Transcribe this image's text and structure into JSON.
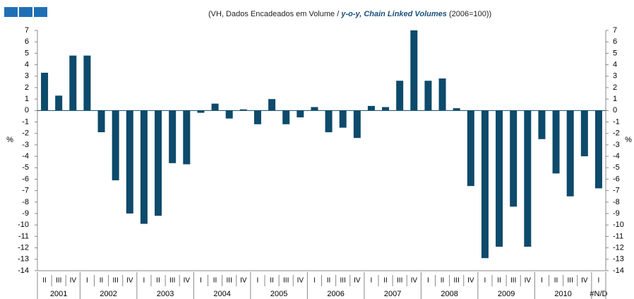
{
  "chart_data": {
    "type": "bar",
    "title_parts": [
      "(VH, Dados Encadeados em Volume /",
      "y-o-y, Chain Linked Volumes",
      "(2006=100))"
    ],
    "y_label": "%",
    "y2_label": "%",
    "groups": [
      {
        "name": "2001",
        "categories": [
          "II",
          "III",
          "IV"
        ]
      },
      {
        "name": "2002",
        "categories": [
          "I",
          "II",
          "III",
          "IV"
        ]
      },
      {
        "name": "2003",
        "categories": [
          "I",
          "II",
          "III",
          "IV"
        ]
      },
      {
        "name": "2004",
        "categories": [
          "I",
          "II",
          "III",
          "IV"
        ]
      },
      {
        "name": "2005",
        "categories": [
          "I",
          "II",
          "III",
          "IV"
        ]
      },
      {
        "name": "2006",
        "categories": [
          "I",
          "II",
          "III",
          "IV"
        ]
      },
      {
        "name": "2007",
        "categories": [
          "I",
          "II",
          "III",
          "IV"
        ]
      },
      {
        "name": "2008",
        "categories": [
          "I",
          "II",
          "III",
          "IV"
        ]
      },
      {
        "name": "2009",
        "categories": [
          "I",
          "II",
          "III",
          "IV"
        ]
      },
      {
        "name": "2010",
        "categories": [
          "I",
          "II",
          "III",
          "IV"
        ]
      },
      {
        "name": "#N/D",
        "categories": [
          "I"
        ]
      }
    ],
    "values": [
      3.3,
      1.3,
      4.8,
      4.8,
      -1.9,
      -6.1,
      -9.0,
      -9.9,
      -9.2,
      -4.6,
      -4.7,
      -0.2,
      0.6,
      -0.7,
      0.1,
      -1.2,
      1.0,
      -1.2,
      -0.6,
      0.3,
      -1.9,
      -1.5,
      -2.4,
      0.4,
      0.3,
      2.6,
      7.0,
      2.6,
      2.8,
      0.2,
      -6.6,
      -12.9,
      -11.9,
      -8.4,
      -11.9,
      -2.5,
      -5.5,
      -7.5,
      -4.0,
      -6.8
    ],
    "color": "#0d4a6b",
    "ylim": [
      -14,
      7
    ],
    "yticks": [
      -14,
      -13,
      -12,
      -11,
      -10,
      -9,
      -8,
      -7,
      -6,
      -5,
      -4,
      -3,
      -2,
      -1,
      0,
      1,
      2,
      3,
      4,
      5,
      6,
      7
    ],
    "y2lim": [
      -14,
      7
    ],
    "y2ticks": [
      -14,
      -13,
      -12,
      -11,
      -10,
      -9,
      -8,
      -7,
      -6,
      -5,
      -4,
      -3,
      -2,
      -1,
      0,
      1,
      2,
      3,
      4,
      5,
      6,
      7
    ]
  }
}
